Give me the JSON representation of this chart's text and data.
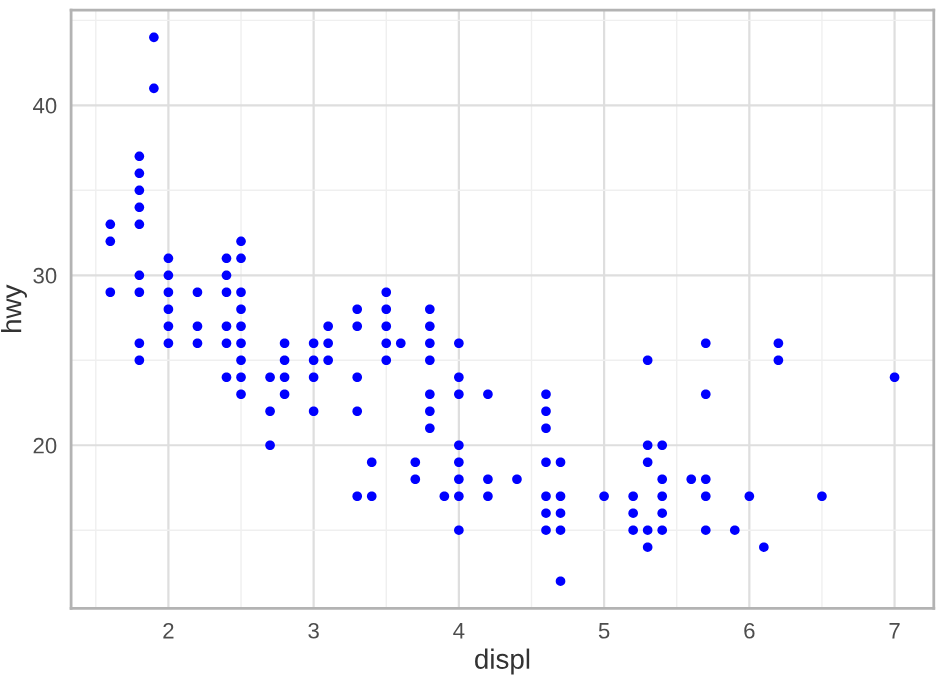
{
  "chart_data": {
    "type": "scatter",
    "xlabel": "displ",
    "ylabel": "hwy",
    "xlim": [
      1.33,
      7.27
    ],
    "ylim": [
      10.4,
      45.6
    ],
    "xticks": [
      2,
      3,
      4,
      5,
      6,
      7
    ],
    "yticks": [
      20,
      30,
      40
    ],
    "grid": true,
    "marker": "circle",
    "x": [
      1.6,
      1.6,
      1.6,
      1.8,
      1.8,
      1.8,
      1.8,
      1.8,
      1.8,
      1.8,
      1.8,
      1.8,
      1.9,
      1.9,
      2.0,
      2.0,
      2.0,
      2.0,
      2.0,
      2.0,
      2.2,
      2.2,
      2.2,
      2.4,
      2.4,
      2.4,
      2.4,
      2.4,
      2.4,
      2.5,
      2.5,
      2.5,
      2.5,
      2.5,
      2.5,
      2.5,
      2.5,
      2.5,
      2.7,
      2.7,
      2.7,
      2.8,
      2.8,
      2.8,
      2.8,
      3.0,
      3.0,
      3.0,
      3.0,
      3.1,
      3.1,
      3.1,
      3.3,
      3.3,
      3.3,
      3.3,
      3.3,
      3.4,
      3.4,
      3.5,
      3.5,
      3.5,
      3.5,
      3.5,
      3.6,
      3.7,
      3.7,
      3.8,
      3.8,
      3.8,
      3.8,
      3.8,
      3.8,
      3.8,
      3.9,
      4.0,
      4.0,
      4.0,
      4.0,
      4.0,
      4.0,
      4.0,
      4.0,
      4.2,
      4.2,
      4.2,
      4.4,
      4.6,
      4.6,
      4.6,
      4.6,
      4.6,
      4.6,
      4.6,
      4.7,
      4.7,
      4.7,
      4.7,
      4.7,
      5.0,
      5.2,
      5.2,
      5.2,
      5.3,
      5.3,
      5.3,
      5.3,
      5.3,
      5.4,
      5.4,
      5.4,
      5.4,
      5.4,
      5.6,
      5.7,
      5.7,
      5.7,
      5.7,
      5.7,
      5.9,
      6.0,
      6.1,
      6.2,
      6.2,
      6.5,
      7.0
    ],
    "series": [
      {
        "color": "#0000ff",
        "values": [
          33,
          32,
          29,
          37,
          36,
          35,
          34,
          33,
          30,
          29,
          26,
          25,
          44,
          41,
          31,
          30,
          29,
          28,
          27,
          26,
          29,
          27,
          26,
          31,
          30,
          29,
          27,
          26,
          24,
          32,
          31,
          29,
          28,
          27,
          26,
          25,
          24,
          23,
          24,
          22,
          20,
          26,
          25,
          24,
          23,
          26,
          25,
          24,
          22,
          27,
          26,
          25,
          28,
          27,
          24,
          22,
          17,
          19,
          17,
          29,
          28,
          27,
          26,
          25,
          26,
          19,
          18,
          28,
          27,
          26,
          25,
          23,
          22,
          21,
          17,
          26,
          24,
          23,
          20,
          19,
          18,
          17,
          15,
          23,
          18,
          17,
          18,
          23,
          22,
          21,
          19,
          17,
          16,
          15,
          19,
          17,
          16,
          15,
          12,
          17,
          17,
          16,
          15,
          25,
          20,
          19,
          15,
          14,
          20,
          18,
          17,
          16,
          15,
          18,
          26,
          23,
          18,
          17,
          15,
          15,
          17,
          14,
          26,
          25,
          17,
          24
        ]
      }
    ]
  }
}
